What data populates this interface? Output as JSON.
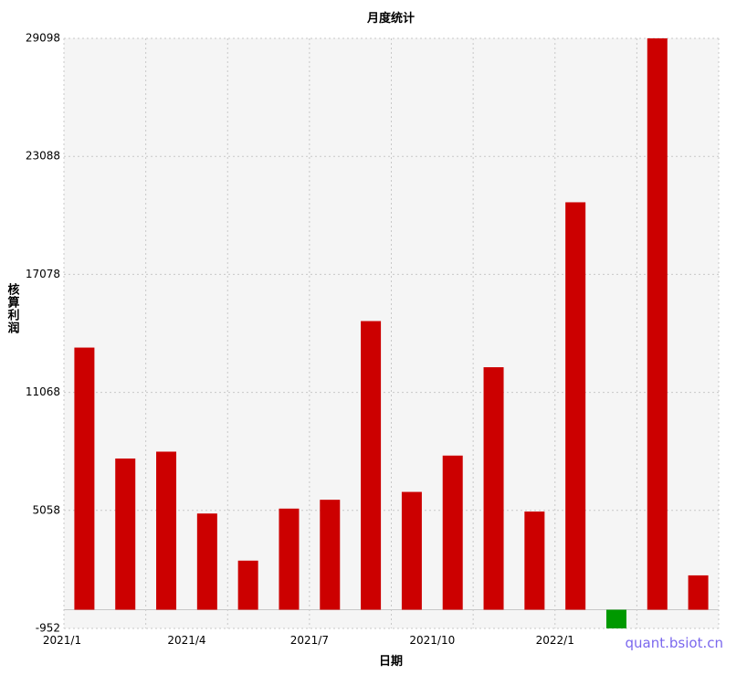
{
  "chart_data": {
    "type": "bar",
    "title": "月度统计",
    "xlabel": "日期",
    "ylabel": "核算利润",
    "categories": [
      "2021/1",
      "2021/2",
      "2021/3",
      "2021/4",
      "2021/5",
      "2021/6",
      "2021/7",
      "2021/8",
      "2021/9",
      "2021/10",
      "2021/11",
      "2021/12",
      "2022/1",
      "2022/2",
      "2022/3",
      "2022/4"
    ],
    "x_tick_labels": [
      "2021/1",
      "2021/4",
      "2021/7",
      "2021/10",
      "2022/1"
    ],
    "y_tick_labels": [
      "-952",
      "5058",
      "11068",
      "17078",
      "23088",
      "29098"
    ],
    "ylim": [
      -952,
      29098
    ],
    "values": [
      13350,
      7700,
      8050,
      4900,
      2500,
      5150,
      5600,
      14700,
      6000,
      7850,
      12350,
      5000,
      20750,
      -952,
      29098,
      1750
    ],
    "colors": {
      "positive": "#cc0000",
      "negative": "#009900",
      "plot_bg": "#f5f5f5",
      "grid": "#c8c8c8"
    },
    "grid": true,
    "legend": "none"
  },
  "watermark": "quant.bsiot.cn"
}
